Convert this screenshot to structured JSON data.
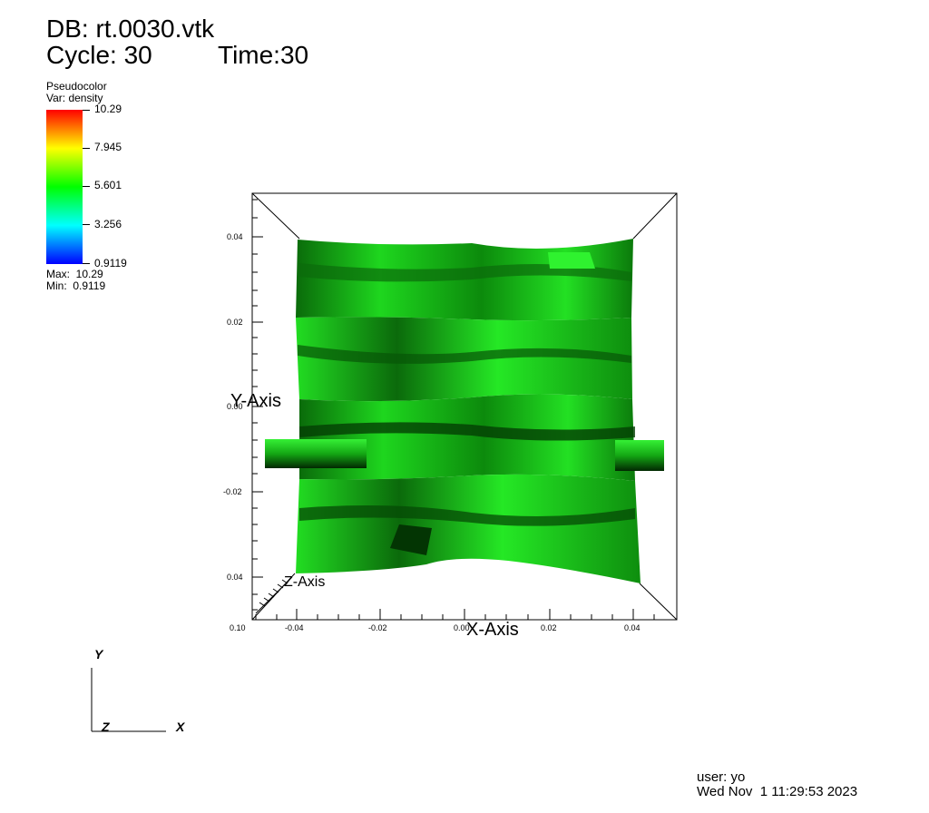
{
  "header": {
    "db_line": "DB: rt.0030.vtk",
    "cycle_label": "Cycle: 30",
    "time_label": "Time:30"
  },
  "legend": {
    "plot_type": "Pseudocolor",
    "variable": "Var: density",
    "ticks": [
      "10.29",
      "7.945",
      "5.601",
      "3.256",
      "0.9119"
    ],
    "max_text": "Max:  10.29",
    "min_text": "Min:  0.9119",
    "colors": [
      "#ff0000",
      "#ffff00",
      "#00ff00",
      "#00ffff",
      "#0000ff"
    ]
  },
  "plot": {
    "y_ticks": [
      "0.04",
      "0.02",
      "0.00",
      "-0.02",
      "0.04"
    ],
    "x_ticks": [
      "0.10",
      "-0.04",
      "-0.02",
      "0.00",
      "0.02",
      "0.04"
    ],
    "x_axis_title": "X-Axis",
    "y_axis_title": "Y-Axis",
    "z_axis_title": "Z-Axis",
    "surface_color": "#1fd61f"
  },
  "triad": {
    "x": "X",
    "y": "Y",
    "z": "Z"
  },
  "footer": {
    "user_line": "user: yo",
    "date_line": "Wed Nov  1 11:29:53 2023"
  }
}
